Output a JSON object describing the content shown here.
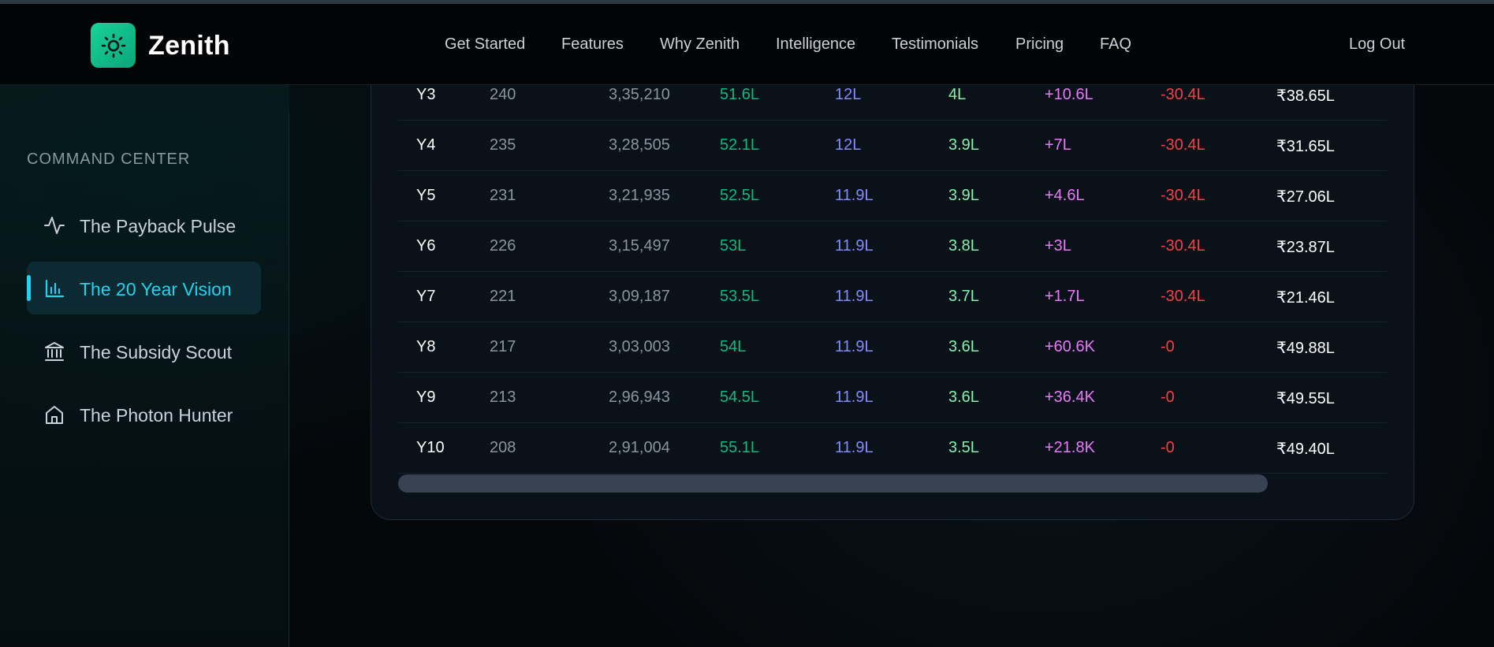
{
  "header": {
    "brand": "Zenith",
    "nav": [
      "Get Started",
      "Features",
      "Why Zenith",
      "Intelligence",
      "Testimonials",
      "Pricing",
      "FAQ"
    ],
    "logout": "Log Out"
  },
  "sidebar": {
    "heading": "COMMAND CENTER",
    "items": [
      {
        "label": "The Payback Pulse",
        "icon": "pulse-icon",
        "active": false
      },
      {
        "label": "The 20 Year Vision",
        "icon": "bar-chart-icon",
        "active": true
      },
      {
        "label": "The Subsidy Scout",
        "icon": "bank-icon",
        "active": false
      },
      {
        "label": "The Photon Hunter",
        "icon": "home-icon",
        "active": false
      }
    ]
  },
  "table": {
    "rows": [
      [
        "Y3",
        "240",
        "3,35,210",
        "51.6L",
        "12L",
        "4L",
        "+10.6L",
        "-30.4L",
        "₹38.65L"
      ],
      [
        "Y4",
        "235",
        "3,28,505",
        "52.1L",
        "12L",
        "3.9L",
        "+7L",
        "-30.4L",
        "₹31.65L"
      ],
      [
        "Y5",
        "231",
        "3,21,935",
        "52.5L",
        "11.9L",
        "3.9L",
        "+4.6L",
        "-30.4L",
        "₹27.06L"
      ],
      [
        "Y6",
        "226",
        "3,15,497",
        "53L",
        "11.9L",
        "3.8L",
        "+3L",
        "-30.4L",
        "₹23.87L"
      ],
      [
        "Y7",
        "221",
        "3,09,187",
        "53.5L",
        "11.9L",
        "3.7L",
        "+1.7L",
        "-30.4L",
        "₹21.46L"
      ],
      [
        "Y8",
        "217",
        "3,03,003",
        "54L",
        "11.9L",
        "3.6L",
        "+60.6K",
        "-0",
        "₹49.88L"
      ],
      [
        "Y9",
        "213",
        "2,96,943",
        "54.5L",
        "11.9L",
        "3.6L",
        "+36.4K",
        "-0",
        "₹49.55L"
      ],
      [
        "Y10",
        "208",
        "2,91,004",
        "55.1L",
        "11.9L",
        "3.5L",
        "+21.8K",
        "-0",
        "₹49.40L"
      ]
    ]
  },
  "colors": {
    "accent": "#22d3ee",
    "brand": "#19d39a",
    "green": "#10b981",
    "indigo": "#818cf8",
    "light_green": "#86efac",
    "magenta": "#e879f9",
    "red": "#ef4444"
  }
}
